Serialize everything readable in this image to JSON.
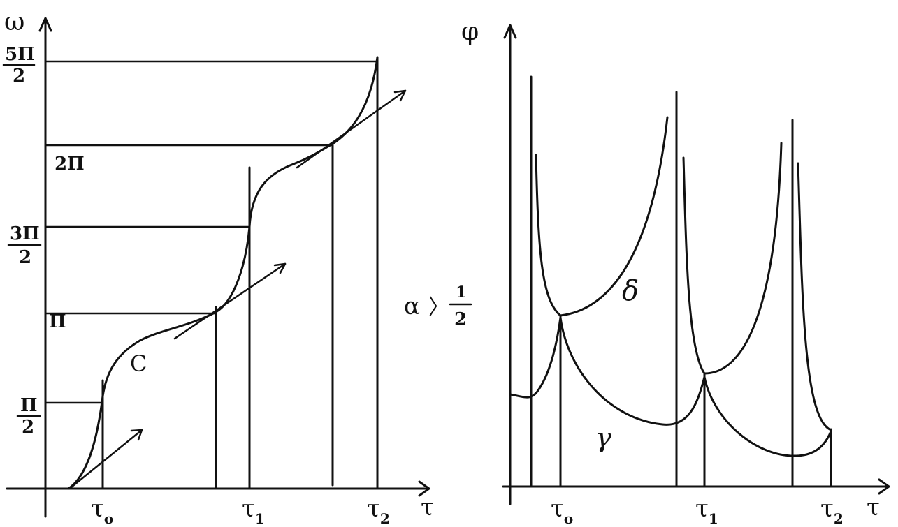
{
  "ink_color": "#111111",
  "background": "#ffffff",
  "left_plot": {
    "y_axis_label": "ω",
    "x_axis_label": "τ",
    "y_ticks": [
      {
        "num": "5Π",
        "den": "2"
      },
      {
        "num": "2Π",
        "den": ""
      },
      {
        "num": "3Π",
        "den": "2"
      },
      {
        "num": "Π",
        "den": ""
      },
      {
        "num": "Π",
        "den": "2"
      }
    ],
    "x_ticks": [
      {
        "base": "τ",
        "sub": "o"
      },
      {
        "base": "τ",
        "sub": "1"
      },
      {
        "base": "τ",
        "sub": "2"
      }
    ],
    "curve_label": "C"
  },
  "middle_annotation": {
    "lhs": "α",
    "op": "〉",
    "num": "1",
    "den": "2"
  },
  "right_plot": {
    "y_axis_label": "φ",
    "x_axis_label": "τ",
    "x_ticks": [
      {
        "base": "τ",
        "sub": "o"
      },
      {
        "base": "τ",
        "sub": "1"
      },
      {
        "base": "τ",
        "sub": "2"
      }
    ],
    "curve_labels": {
      "upper": "δ",
      "lower": "γ"
    }
  }
}
